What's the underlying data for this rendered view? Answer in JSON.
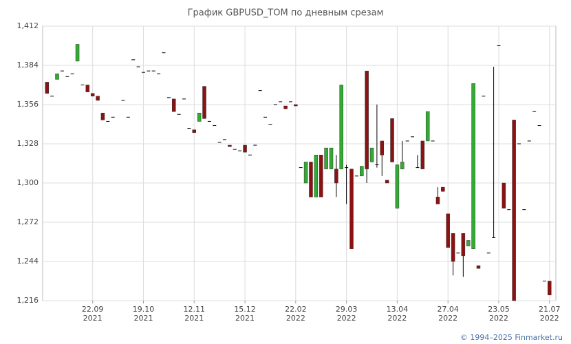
{
  "chart_data": {
    "type": "candlestick",
    "title": "График GBPUSD_TOM по дневным срезам",
    "footer": "© 1994–2025 Finmarket.ru",
    "categories": [
      null,
      null,
      null,
      null,
      null,
      null,
      null,
      null,
      null,
      [
        "22.09",
        "2021"
      ],
      null,
      null,
      null,
      null,
      null,
      null,
      null,
      null,
      null,
      [
        "19.10",
        "2021"
      ],
      null,
      null,
      null,
      null,
      null,
      null,
      null,
      null,
      null,
      [
        "12.11",
        "2021"
      ],
      null,
      null,
      null,
      null,
      null,
      null,
      null,
      null,
      null,
      [
        "15.12",
        "2021"
      ],
      null,
      null,
      null,
      null,
      null,
      null,
      null,
      null,
      null,
      [
        "22.02",
        "2022"
      ],
      null,
      null,
      null,
      null,
      null,
      null,
      null,
      null,
      null,
      [
        "29.03",
        "2022"
      ],
      null,
      null,
      null,
      null,
      null,
      null,
      null,
      null,
      null,
      [
        "13.04",
        "2022"
      ],
      null,
      null,
      null,
      null,
      null,
      null,
      null,
      null,
      null,
      [
        "27.04",
        "2022"
      ],
      null,
      null,
      null,
      null,
      null,
      null,
      null,
      null,
      null,
      [
        "23.05",
        "2022"
      ],
      null,
      null,
      null,
      null,
      null,
      null,
      null,
      null,
      null,
      [
        "21.07",
        "2022"
      ],
      null
    ],
    "open": [
      1.372,
      1.362,
      1.374,
      1.38,
      1.376,
      1.378,
      1.387,
      1.37,
      1.37,
      1.364,
      1.362,
      1.35,
      1.344,
      1.347,
      null,
      1.359,
      1.347,
      1.388,
      1.383,
      1.379,
      1.38,
      1.38,
      1.378,
      1.393,
      1.361,
      1.36,
      1.349,
      1.36,
      1.339,
      1.338,
      1.344,
      1.369,
      1.344,
      1.341,
      1.329,
      1.331,
      1.327,
      1.324,
      1.323,
      1.327,
      1.32,
      1.327,
      1.366,
      1.347,
      1.342,
      1.356,
      1.358,
      1.355,
      1.358,
      1.356,
      1.311,
      1.3,
      1.315,
      1.29,
      1.32,
      1.31,
      1.31,
      1.31,
      1.31,
      1.311,
      1.31,
      1.305,
      1.305,
      1.38,
      1.315,
      1.313,
      1.33,
      1.302,
      1.346,
      1.282,
      1.31,
      1.33,
      1.333,
      1.311,
      1.33,
      1.33,
      1.33,
      1.29,
      1.297,
      1.278,
      1.264,
      1.25,
      1.264,
      1.255,
      1.253,
      1.241,
      1.362,
      1.25,
      1.261,
      1.398,
      1.3,
      1.281,
      1.345,
      1.328,
      1.281,
      1.33,
      1.351,
      1.341,
      1.23,
      1.23,
      null
    ],
    "high": [
      1.372,
      1.362,
      1.378,
      1.38,
      1.376,
      1.378,
      1.399,
      1.37,
      1.37,
      1.364,
      1.362,
      1.35,
      1.344,
      1.347,
      null,
      1.359,
      1.347,
      1.388,
      1.383,
      1.379,
      1.38,
      1.38,
      1.378,
      1.393,
      1.361,
      1.36,
      1.349,
      1.36,
      1.339,
      1.338,
      1.35,
      1.369,
      1.344,
      1.341,
      1.329,
      1.331,
      1.327,
      1.324,
      1.323,
      1.327,
      1.32,
      1.327,
      1.366,
      1.347,
      1.342,
      1.356,
      1.358,
      1.355,
      1.358,
      1.356,
      1.311,
      1.315,
      1.315,
      1.32,
      1.32,
      1.325,
      1.325,
      1.32,
      1.37,
      1.313,
      1.31,
      1.305,
      1.312,
      1.38,
      1.325,
      1.356,
      1.33,
      1.302,
      1.346,
      1.313,
      1.33,
      1.33,
      1.333,
      1.32,
      1.33,
      1.351,
      1.33,
      1.297,
      1.297,
      1.278,
      1.264,
      1.25,
      1.264,
      1.259,
      1.371,
      1.241,
      1.362,
      1.25,
      1.383,
      1.398,
      1.3,
      1.281,
      1.345,
      1.328,
      1.281,
      1.33,
      1.351,
      1.341,
      1.23,
      1.23,
      null
    ],
    "low": [
      1.364,
      1.362,
      1.374,
      1.38,
      1.376,
      1.378,
      1.387,
      1.37,
      1.365,
      1.362,
      1.359,
      1.345,
      1.344,
      1.347,
      null,
      1.359,
      1.347,
      1.388,
      1.383,
      1.379,
      1.38,
      1.38,
      1.378,
      1.393,
      1.361,
      1.351,
      1.349,
      1.36,
      1.339,
      1.336,
      1.344,
      1.346,
      1.344,
      1.341,
      1.329,
      1.331,
      1.326,
      1.324,
      1.323,
      1.322,
      1.32,
      1.327,
      1.366,
      1.347,
      1.342,
      1.356,
      1.358,
      1.353,
      1.358,
      1.355,
      1.311,
      1.3,
      1.29,
      1.29,
      1.29,
      1.31,
      1.31,
      1.29,
      1.31,
      1.285,
      1.253,
      1.305,
      1.305,
      1.3,
      1.315,
      1.311,
      1.305,
      1.3,
      1.315,
      1.282,
      1.31,
      1.33,
      1.333,
      1.311,
      1.31,
      1.33,
      1.33,
      1.285,
      1.294,
      1.254,
      1.234,
      1.25,
      1.233,
      1.255,
      1.253,
      1.239,
      1.362,
      1.25,
      1.261,
      1.398,
      1.282,
      1.281,
      1.216,
      1.328,
      1.281,
      1.33,
      1.351,
      1.341,
      1.23,
      1.22,
      null
    ],
    "close": [
      1.364,
      1.362,
      1.378,
      1.38,
      1.376,
      1.378,
      1.399,
      1.37,
      1.365,
      1.362,
      1.359,
      1.345,
      1.344,
      1.347,
      null,
      1.359,
      1.347,
      1.388,
      1.383,
      1.379,
      1.38,
      1.38,
      1.378,
      1.393,
      1.361,
      1.351,
      1.349,
      1.36,
      1.339,
      1.336,
      1.35,
      1.346,
      1.344,
      1.341,
      1.329,
      1.331,
      1.326,
      1.324,
      1.323,
      1.322,
      1.32,
      1.327,
      1.366,
      1.347,
      1.342,
      1.356,
      1.358,
      1.353,
      1.358,
      1.355,
      1.311,
      1.315,
      1.29,
      1.32,
      1.29,
      1.325,
      1.325,
      1.3,
      1.37,
      1.311,
      1.253,
      1.305,
      1.312,
      1.31,
      1.325,
      1.313,
      1.32,
      1.3,
      1.315,
      1.313,
      1.315,
      1.33,
      1.333,
      1.311,
      1.31,
      1.351,
      1.33,
      1.285,
      1.294,
      1.254,
      1.244,
      1.25,
      1.248,
      1.259,
      1.371,
      1.239,
      1.362,
      1.25,
      1.261,
      1.398,
      1.282,
      1.281,
      1.216,
      1.328,
      1.281,
      1.33,
      1.351,
      1.341,
      1.23,
      1.22,
      null
    ],
    "up_color": "#33aa33",
    "down_color": "#8b1212",
    "flat_color": "#000000",
    "ylim": [
      1.216,
      1.412
    ],
    "yticks": [
      {
        "value": 1.216,
        "label": "1,216"
      },
      {
        "value": 1.244,
        "label": "1,244"
      },
      {
        "value": 1.272,
        "label": "1,272"
      },
      {
        "value": 1.3,
        "label": "1,300"
      },
      {
        "value": 1.328,
        "label": "1,328"
      },
      {
        "value": 1.356,
        "label": "1,356"
      },
      {
        "value": 1.384,
        "label": "1,384"
      },
      {
        "value": 1.412,
        "label": "1,412"
      }
    ],
    "grid": true
  }
}
